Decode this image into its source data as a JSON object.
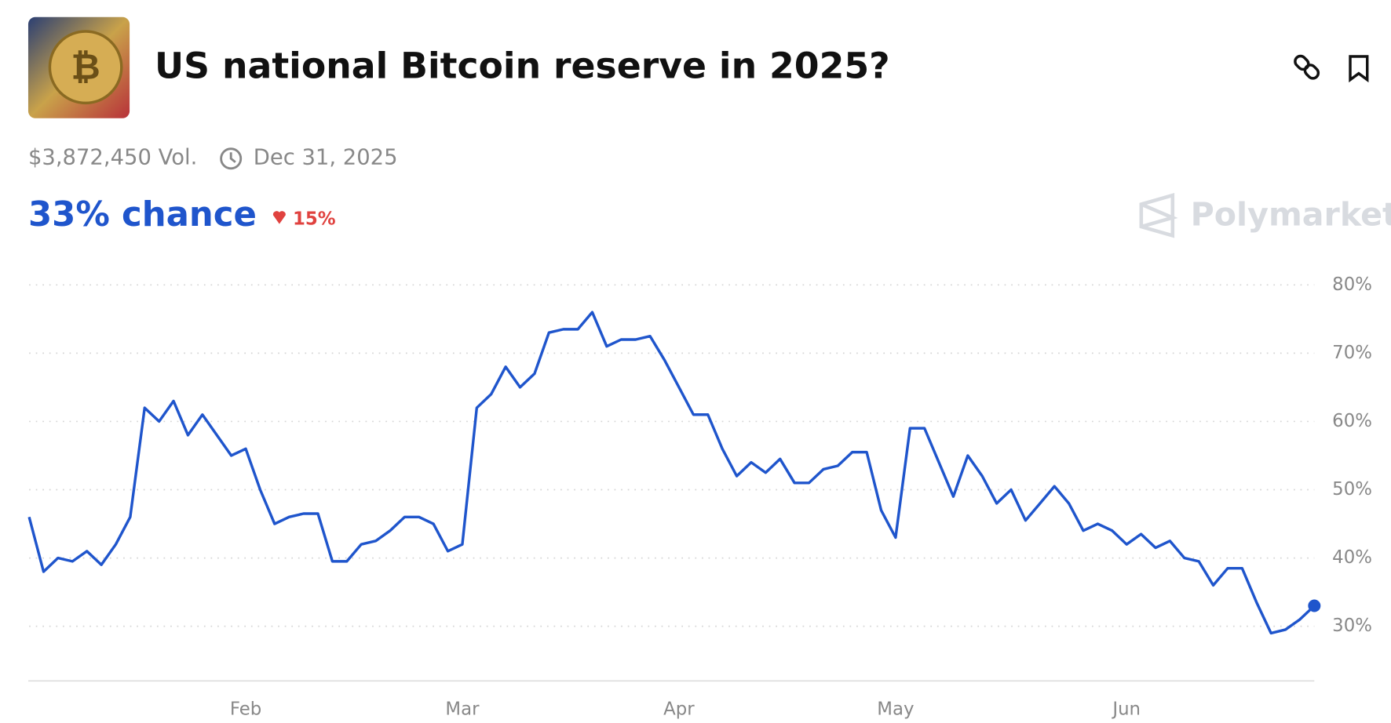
{
  "header": {
    "title": "US national Bitcoin reserve in 2025?",
    "volume": "$3,872,450 Vol.",
    "end_date": "Dec 31, 2025",
    "chance": "33% chance",
    "change": "15%",
    "brand": "Polymarket"
  },
  "chart_data": {
    "type": "line",
    "categories": [
      null,
      null,
      null,
      null,
      null,
      null,
      null,
      null,
      null,
      null,
      null,
      null,
      null,
      null,
      null,
      "Feb",
      null,
      null,
      null,
      null,
      null,
      null,
      null,
      null,
      null,
      null,
      null,
      null,
      null,
      null,
      "Mar",
      null,
      null,
      null,
      null,
      null,
      null,
      null,
      null,
      null,
      null,
      null,
      null,
      null,
      null,
      "Apr",
      null,
      null,
      null,
      null,
      null,
      null,
      null,
      null,
      null,
      null,
      null,
      null,
      null,
      null,
      "May",
      null,
      null,
      null,
      null,
      null,
      null,
      null,
      null,
      null,
      null,
      null,
      null,
      null,
      null,
      null,
      "Jun",
      null,
      null,
      null,
      null,
      null,
      null,
      null,
      null,
      null,
      null,
      null,
      null,
      null
    ],
    "series": [
      {
        "color": "#1f55cc",
        "values": [
          46,
          38,
          40,
          39.5,
          41,
          39,
          42,
          46,
          62,
          60,
          63,
          58,
          61,
          58,
          55,
          56,
          50,
          45,
          46,
          46.5,
          46.5,
          39.5,
          39.5,
          42,
          42.5,
          44,
          46,
          46,
          45,
          41,
          42,
          62,
          64,
          68,
          65,
          67,
          73,
          73.5,
          73.5,
          76,
          71,
          72,
          72,
          72.5,
          69,
          65,
          61,
          61,
          56,
          52,
          54,
          52.5,
          54.5,
          51,
          51,
          53,
          53.5,
          55.5,
          55.5,
          47,
          43,
          59,
          59,
          54,
          49,
          55,
          52,
          48,
          50,
          45.5,
          48,
          50.5,
          48,
          44,
          45,
          44,
          42,
          43.5,
          41.5,
          42.5,
          40,
          39.5,
          36,
          38.5,
          38.5,
          33.5,
          29,
          29.5,
          31,
          33
        ]
      }
    ],
    "ylim": [
      22,
      80
    ],
    "yticks": [
      {
        "value": 30,
        "label": "30%"
      },
      {
        "value": 40,
        "label": "40%"
      },
      {
        "value": 50,
        "label": "50%"
      },
      {
        "value": 60,
        "label": "60%"
      },
      {
        "value": 70,
        "label": "70%"
      },
      {
        "value": 80,
        "label": "80%"
      }
    ],
    "grid": true
  }
}
